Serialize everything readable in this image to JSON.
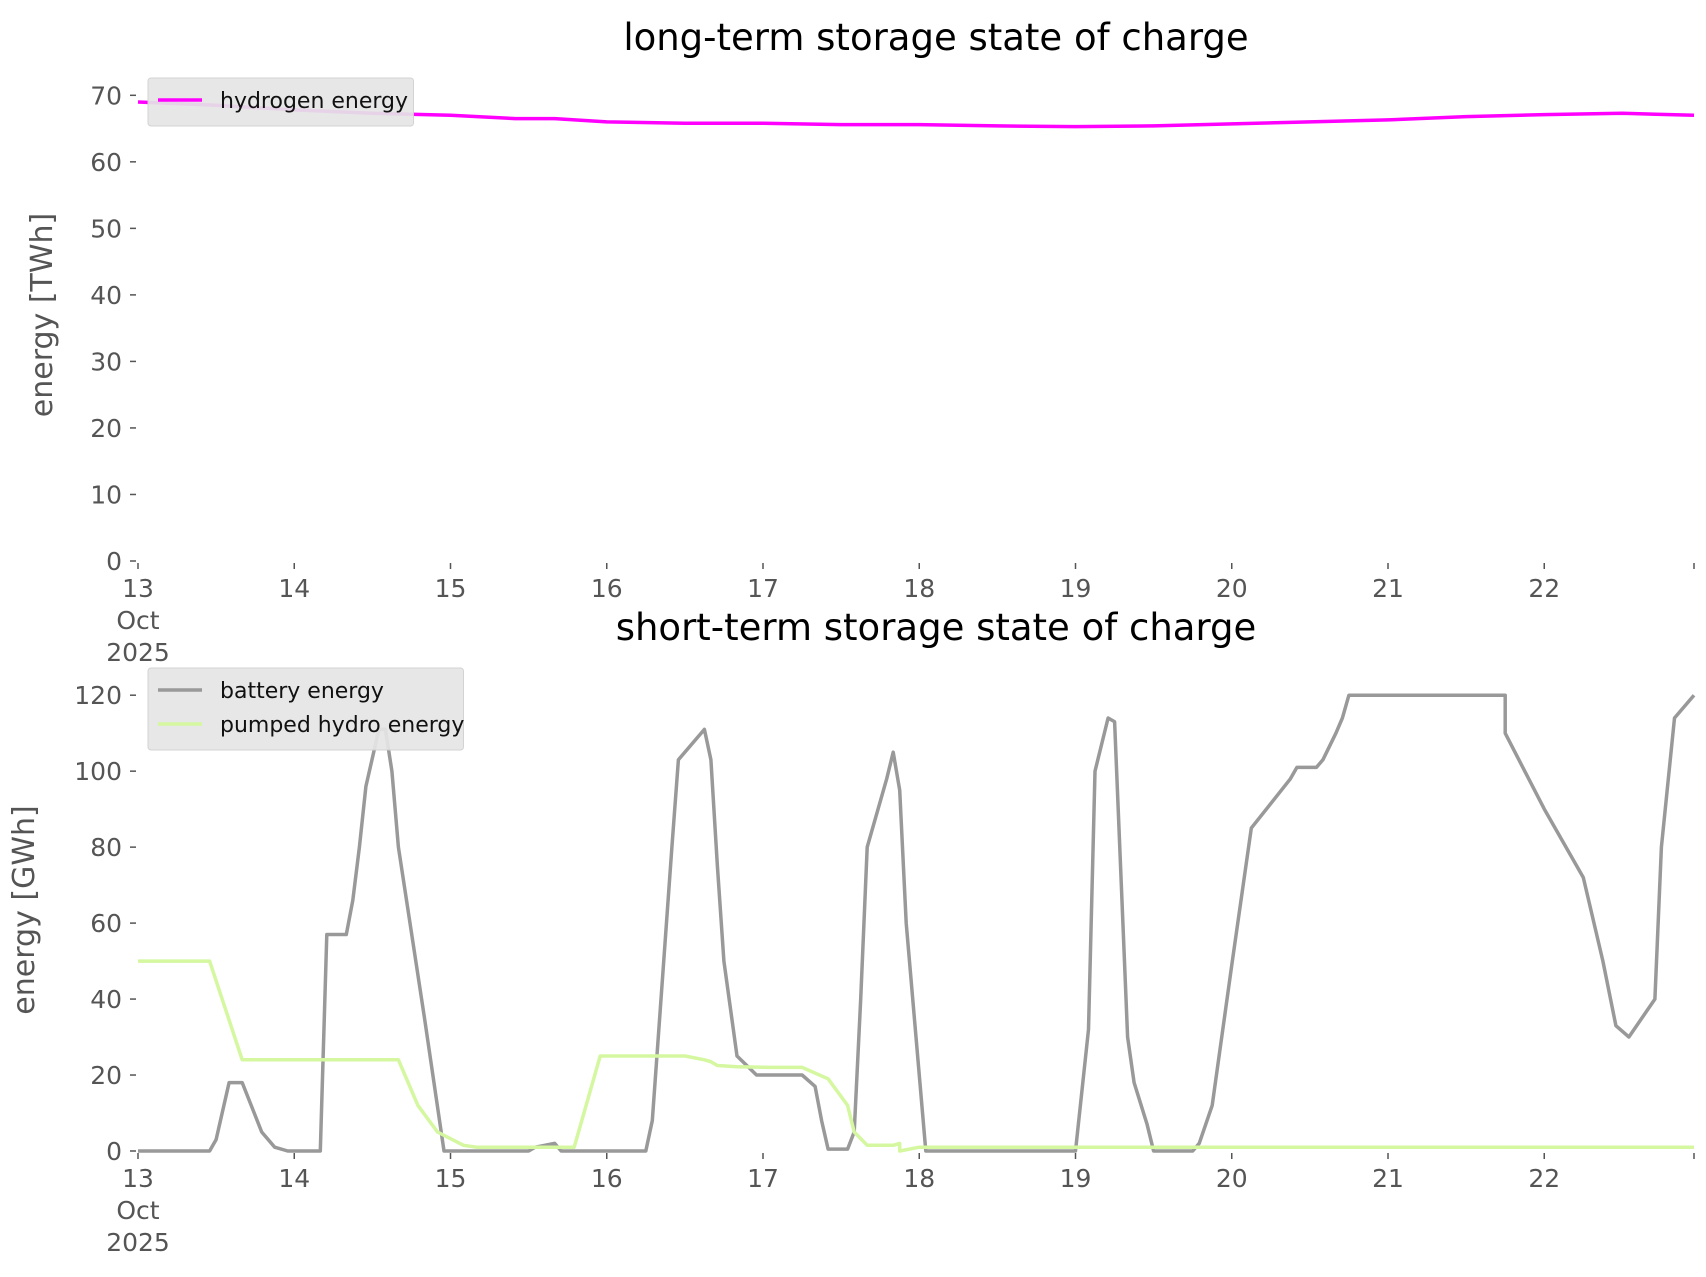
{
  "colors": {
    "hydrogen": "#ff00ff",
    "battery": "#999999",
    "pumped_hydro": "#d4f7a0",
    "tick_text": "#555555",
    "title_text": "#000000",
    "legend_bg": "#e5e5e5"
  },
  "chart_data": [
    {
      "type": "line",
      "title": "long-term storage state of charge",
      "xlabel": "",
      "ylabel": "energy [TWh]",
      "ylim": [
        0,
        72
      ],
      "yticks": [
        0,
        10,
        20,
        30,
        40,
        50,
        60,
        70
      ],
      "xlim": [
        0,
        239
      ],
      "x_unit": "hours since 13 Oct 2025 00:00",
      "xtick_labels": [
        {
          "lines": [
            "13",
            "Oct",
            "2025"
          ]
        },
        {
          "lines": [
            "14"
          ]
        },
        {
          "lines": [
            "15"
          ]
        },
        {
          "lines": [
            "16"
          ]
        },
        {
          "lines": [
            "17"
          ]
        },
        {
          "lines": [
            "18"
          ]
        },
        {
          "lines": [
            "19"
          ]
        },
        {
          "lines": [
            "20"
          ]
        },
        {
          "lines": [
            "21"
          ]
        },
        {
          "lines": [
            "22"
          ]
        }
      ],
      "grid": false,
      "legend_position": "top-left",
      "series": [
        {
          "name": "hydrogen energy",
          "color_key": "hydrogen",
          "x": [
            0,
            12,
            24,
            36,
            48,
            58,
            64,
            72,
            84,
            96,
            108,
            120,
            132,
            144,
            156,
            168,
            180,
            192,
            204,
            216,
            228,
            239
          ],
          "values": [
            69,
            68.5,
            67.8,
            67.3,
            67.0,
            66.5,
            66.5,
            66.0,
            65.8,
            65.8,
            65.6,
            65.6,
            65.4,
            65.3,
            65.4,
            65.7,
            66.0,
            66.3,
            66.8,
            67.1,
            67.3,
            67.0
          ]
        }
      ]
    },
    {
      "type": "line",
      "title": "short-term storage state of charge",
      "xlabel": "",
      "ylabel": "energy [GWh]",
      "ylim": [
        0,
        124
      ],
      "yticks": [
        0,
        20,
        40,
        60,
        80,
        100,
        120
      ],
      "xlim": [
        0,
        239
      ],
      "x_unit": "hours since 13 Oct 2025 00:00",
      "xtick_labels": [
        {
          "lines": [
            "13",
            "Oct",
            "2025"
          ]
        },
        {
          "lines": [
            "14"
          ]
        },
        {
          "lines": [
            "15"
          ]
        },
        {
          "lines": [
            "16"
          ]
        },
        {
          "lines": [
            "17"
          ]
        },
        {
          "lines": [
            "18"
          ]
        },
        {
          "lines": [
            "19"
          ]
        },
        {
          "lines": [
            "20"
          ]
        },
        {
          "lines": [
            "21"
          ]
        },
        {
          "lines": [
            "22"
          ]
        }
      ],
      "grid": false,
      "legend_position": "top-left",
      "series": [
        {
          "name": "battery energy",
          "color_key": "battery",
          "x": [
            0,
            11,
            12,
            14,
            16,
            19,
            21,
            23,
            28,
            29,
            32,
            33,
            34,
            35,
            37,
            38,
            39,
            40,
            44,
            47,
            60,
            61,
            64,
            65,
            74,
            78,
            79,
            82,
            83,
            87,
            88,
            89,
            90,
            92,
            95,
            102,
            104,
            105,
            106,
            109,
            110,
            111,
            112,
            115,
            116,
            117,
            118,
            121,
            125,
            128,
            129,
            131,
            135,
            136,
            144,
            146,
            147,
            149,
            150,
            152,
            153,
            155,
            156,
            158,
            159,
            162,
            163,
            165,
            168,
            171,
            177,
            178,
            180,
            181,
            182,
            184,
            185,
            186,
            187,
            189,
            191,
            193,
            200,
            200,
            210,
            210,
            216,
            222,
            225,
            227,
            229,
            233,
            234,
            236,
            239
          ],
          "values": [
            0,
            0,
            3,
            18,
            18,
            5,
            1,
            0,
            0,
            57,
            57,
            66,
            80,
            96,
            111,
            111,
            100,
            80,
            35,
            0,
            0,
            1,
            2,
            0,
            0,
            0,
            8,
            80,
            103,
            111,
            103,
            75,
            50,
            25,
            20,
            20,
            17,
            8,
            0.5,
            0.5,
            5,
            40,
            80,
            98,
            105,
            95,
            60,
            0,
            0,
            0,
            0,
            0,
            0,
            0,
            0,
            32,
            100,
            114,
            113,
            30,
            18,
            7,
            0,
            0,
            0,
            0,
            2,
            12,
            49,
            85,
            98,
            101,
            101,
            101,
            103,
            110,
            114,
            120,
            120,
            120,
            120,
            120,
            120,
            120,
            120,
            110,
            90,
            72,
            50,
            33,
            30,
            40,
            80,
            114,
            120
          ]
        },
        {
          "name": "pumped hydro energy",
          "color_key": "pumped_hydro",
          "x": [
            0,
            5,
            8,
            11,
            16,
            18,
            20,
            22,
            29,
            31,
            40,
            43,
            46,
            50,
            52,
            53,
            56,
            65,
            66,
            67,
            71,
            73,
            77,
            80,
            83,
            84,
            87,
            88,
            89,
            92,
            97,
            101,
            102,
            106,
            109,
            110,
            112,
            116,
            117,
            117,
            120,
            121,
            122,
            123,
            124,
            127,
            128,
            129,
            130,
            131,
            132,
            133,
            134,
            136,
            137,
            140,
            141,
            144,
            145,
            148,
            151,
            155,
            156,
            158,
            159,
            162,
            163,
            169,
            171,
            181,
            183,
            210,
            212,
            214,
            218,
            220,
            222,
            226,
            239
          ],
          "values": [
            50,
            50,
            50,
            50,
            24,
            24,
            24,
            24,
            24,
            24,
            24,
            12,
            5,
            1.5,
            1,
            1,
            1,
            1,
            1,
            1,
            25,
            25,
            25,
            25,
            25,
            25,
            24,
            23.5,
            22.5,
            22.2,
            22,
            22,
            22,
            19,
            12,
            5,
            1.5,
            1.5,
            2,
            0,
            1,
            1,
            1,
            1,
            1,
            1,
            1,
            1,
            1,
            1,
            1,
            1,
            1,
            1,
            1,
            1,
            1,
            1,
            1,
            1,
            1,
            1,
            1,
            1,
            1,
            1,
            1,
            1,
            1,
            1,
            1,
            1,
            1,
            1,
            1,
            1,
            1,
            1,
            1
          ]
        }
      ]
    }
  ]
}
